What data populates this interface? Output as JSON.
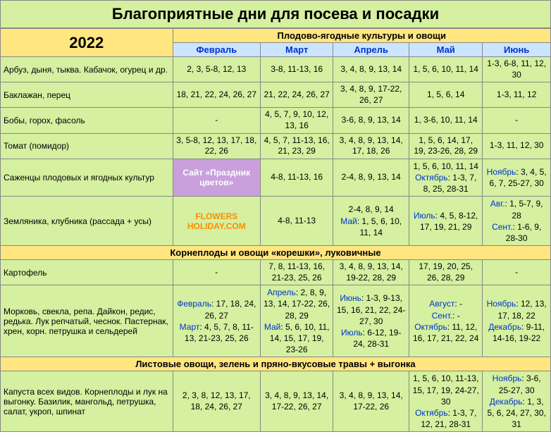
{
  "title": "Благоприятные дни для посева и посадки",
  "year": "2022",
  "section1": "Плодово-ягодные культуры и овощи",
  "section2": "Корнеплоды и овощи «корешки», луковичные",
  "section3": "Листовые овощи, зелень и пряно-вкусовые травы + выгонка",
  "months": {
    "m1": "Февраль",
    "m2": "Март",
    "m3": "Апрель",
    "m4": "Май",
    "m5": "Июнь"
  },
  "promo1": "Сайт «Праздник цветов»",
  "promo2": "FLOWERS HOLIDAY.COM",
  "crops": {
    "r1": {
      "name": "Арбуз, дыня, тыква. Кабачок, огурец и др.",
      "c1": "2, 3, 5-8, 12, 13",
      "c2": "3-8, 11-13, 16",
      "c3": "3, 4, 8, 9, 13, 14",
      "c4": "1, 5, 6, 10, 11, 14",
      "c5": "1-3, 6-8, 11, 12, 30"
    },
    "r2": {
      "name": "Баклажан, перец",
      "c1": "18, 21, 22, 24, 26, 27",
      "c2": "21, 22, 24, 26, 27",
      "c3": "3, 4, 8, 9, 17-22, 26, 27",
      "c4": "1, 5, 6, 14",
      "c5": "1-3, 11, 12"
    },
    "r3": {
      "name": "Бобы, горох, фасоль",
      "c1": "-",
      "c2": "4, 5, 7, 9, 10, 12, 13, 16",
      "c3": "3-6, 8, 9, 13, 14",
      "c4": "1, 3-6, 10, 11, 14",
      "c5": "-"
    },
    "r4": {
      "name": "Томат (помидор)",
      "c1": "3, 5-8, 12, 13, 17, 18, 22, 26",
      "c2": "4, 5, 7, 11-13, 16, 21, 23, 29",
      "c3": "3, 4, 8, 9, 13, 14, 17, 18, 26",
      "c4": "1, 5, 6, 14, 17, 19, 23-26, 28, 29",
      "c5": "1-3, 11, 12, 30"
    },
    "r5": {
      "name": "Саженцы плодовых и ягодных культур",
      "c2": "4-8, 11-13, 16",
      "c3": "2-4, 8, 9, 13, 14",
      "c4_html": "1, 5, 6, 10, 11, 14<br><span style='color:#0033cc'>Октябрь</span>: 1-3, 7, 8, 25, 28-31",
      "c5_html": "<span style='color:#0033cc'>Ноябрь</span>: 3, 4, 5, 6, 7, 25-27, 30"
    },
    "r6": {
      "name": "Земляника, клубника (рассада + усы)",
      "c2": "4-8, 11-13",
      "c3_html": "2-4, 8, 9, 14<br><span style='color:#0033cc'>Май</span>: 1, 5, 6, 10, 11, 14",
      "c4_html": "<span style='color:#0033cc'>Июль</span>: 4, 5, 8-12, 17, 19, 21, 29",
      "c5_html": "<span style='color:#0033cc'>Авг.</span>: 1, 5-7, 9, 28<br><span style='color:#0033cc'>Сент.</span>: 1-6, 9, 28-30"
    },
    "r7": {
      "name": "Картофель",
      "c1": "-",
      "c2": "7, 8, 11-13, 16, 21-23, 25, 26",
      "c3": "3, 4, 8, 9, 13, 14, 19-22, 28, 29",
      "c4": "17, 19, 20, 25, 26, 28, 29",
      "c5": "-"
    },
    "r8": {
      "name": "Морковь, свекла, репа. Дайкон, редис, редька. Лук репчатый, чеснок. Пастернак, хрен, корн. петрушка и сельдерей",
      "c1_html": "<span style='color:#0033cc'>Февраль</span>: 17, 18, 24, 26, 27<br><span style='color:#0033cc'>Март</span>: 4, 5, 7, 8, 11-13, 21-23, 25, 26",
      "c2_html": "<span style='color:#0033cc'>Апрель</span>: 2, 8, 9, 13, 14, 17-22, 26, 28, 29<br><span style='color:#0033cc'>Май</span>: 5, 6, 10, 11, 14, 15, 17, 19, 23-26",
      "c3_html": "<span style='color:#0033cc'>Июнь</span>: 1-3, 9-13, 15, 16, 21, 22, 24-27, 30<br><span style='color:#0033cc'>Июль</span>: 6-12, 19-24, 28-31",
      "c4_html": "<span style='color:#0033cc'>Август</span>: -<br><span style='color:#0033cc'>Сент.</span>: -<br><span style='color:#0033cc'>Октябрь</span>: 11, 12, 16, 17, 21, 22, 24",
      "c5_html": "<span style='color:#0033cc'>Ноябрь</span>: 12, 13, 17, 18, 22<br><span style='color:#0033cc'>Декабрь</span>: 9-11, 14-16, 19-22"
    },
    "r9": {
      "name": "Капуста всех видов. Корнеплоды и лук на выгонку. Базилик, мангольд, петрушка, салат, укроп, шпинат",
      "c1": "2, 3, 8, 12, 13, 17, 18, 24, 26, 27",
      "c2": "3, 4, 8, 9, 13, 14, 17-22, 26, 27",
      "c3": "3, 4, 8, 9, 13, 14, 17-22, 26",
      "c4_html": "1, 5, 6, 10, 11-13, 15, 17, 19, 24-27, 30<br><span style='color:#0033cc'>Октябрь</span>: 1-3, 7, 12, 21, 28-31",
      "c5_html": "<span style='color:#0033cc'>Ноябрь</span>: 3-6, 25-27, 30<br><span style='color:#0033cc'>Декабрь</span>: 1, 3, 5, 6, 24, 27, 30, 31"
    }
  }
}
